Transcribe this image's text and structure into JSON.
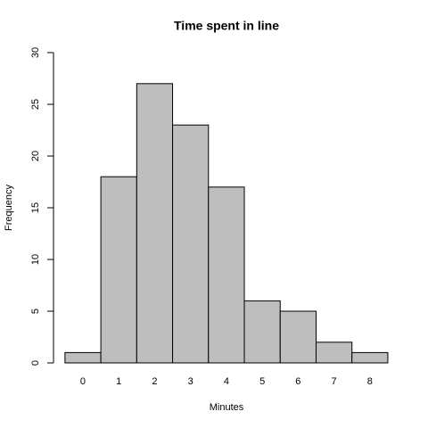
{
  "chart_data": {
    "type": "histogram",
    "title": "Time spent in line",
    "xlabel": "Minutes",
    "ylabel": "Frequency",
    "bins": [
      -0.5,
      0.5,
      1.5,
      2.5,
      3.5,
      4.5,
      5.5,
      6.5,
      7.5,
      8.5
    ],
    "values": [
      1,
      18,
      27,
      23,
      17,
      6,
      5,
      2,
      1
    ],
    "color": "#bebebe",
    "xlim": [
      -0.82,
      8.75
    ],
    "xticks": [
      0,
      1,
      2,
      3,
      4,
      5,
      6,
      7,
      8
    ],
    "ylim": [
      0,
      30
    ],
    "yticks": [
      0,
      5,
      10,
      15,
      20,
      25,
      30
    ]
  }
}
